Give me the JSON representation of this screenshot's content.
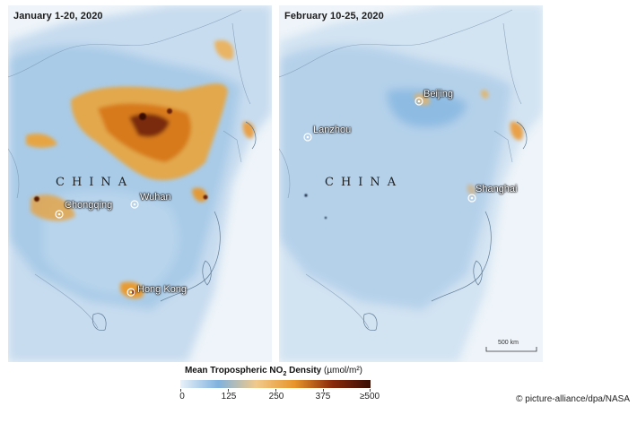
{
  "panels": [
    {
      "title": "January 1-20, 2020",
      "country_label": "CHINA",
      "cities": [
        "Chongqing",
        "Wuhan",
        "Hong Kong"
      ]
    },
    {
      "title": "February 10-25, 2020",
      "country_label": "CHINA",
      "cities": [
        "Beijing",
        "Lanzhou",
        "Shanghai"
      ],
      "scale_bar": "500 km"
    }
  ],
  "legend": {
    "title_main": "Mean Tropospheric NO",
    "title_sub": "2",
    "title_density": " Density",
    "title_unit": " (µmol/m²)",
    "ticks": [
      "0",
      "125",
      "250",
      "375",
      "≥500"
    ],
    "colors": [
      "#e8f1f9",
      "#7fb2de",
      "#f1c98a",
      "#e8952a",
      "#8a2a0a",
      "#3a0e04"
    ]
  },
  "credit": "© picture-alliance/dpa/NASA"
}
